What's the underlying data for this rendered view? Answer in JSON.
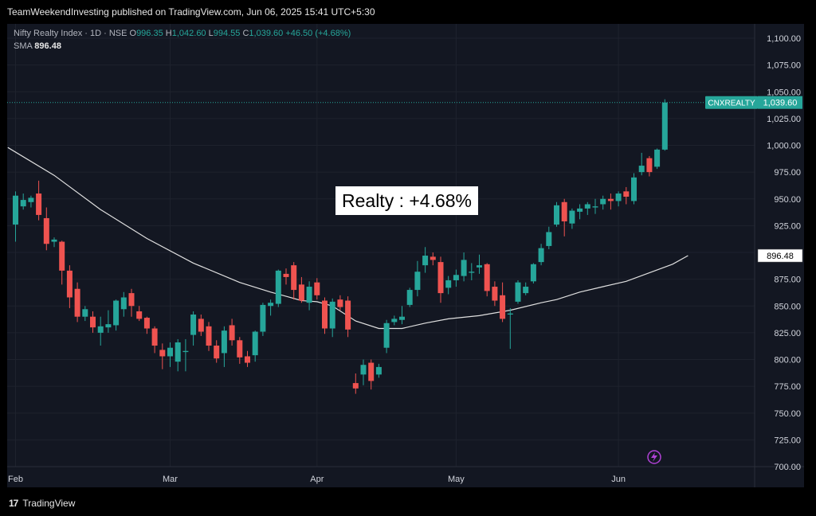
{
  "header": {
    "publish_line": "TeamWeekendInvesting published on TradingView.com, Jun 06, 2025 15:41 UTC+5:30"
  },
  "legend": {
    "symbol": "Nifty Realty Index · 1D · NSE",
    "o_label": "O",
    "o_value": "996.35",
    "h_label": "H",
    "h_value": "1,042.60",
    "l_label": "L",
    "l_value": "994.55",
    "c_label": "C",
    "c_value": "1,039.60",
    "change": "+46.50 (+4.68%)",
    "sma_label": "SMA",
    "sma_value": "896.48"
  },
  "annotation": {
    "text": "Realty : +4.68%"
  },
  "footer": {
    "brand": "TradingView",
    "brand_mark": "17"
  },
  "colors": {
    "up": "#26a69a",
    "down": "#ef5350",
    "background": "#131722",
    "grid": "#1e222d",
    "sma": "#e0e0e0"
  },
  "chart_data": {
    "type": "candlestick",
    "symbol": "CNXREALTY",
    "last_price_label": "1,039.60",
    "sma_label": "896.48",
    "ylim": [
      700,
      1100
    ],
    "y_ticks": [
      700,
      725,
      750,
      775,
      800,
      825,
      850,
      875,
      900,
      925,
      950,
      975,
      1000,
      1025,
      1050,
      1075,
      1100
    ],
    "y_tick_labels": [
      "700.00",
      "725.00",
      "750.00",
      "775.00",
      "800.00",
      "825.00",
      "850.00",
      "875.00",
      "900.00",
      "925.00",
      "950.00",
      "975.00",
      "1,000.00",
      "1,025.00",
      "1,050.00",
      "1,075.00",
      "1,100.00"
    ],
    "x_labels": [
      {
        "label": "Feb",
        "index": 0
      },
      {
        "label": "Mar",
        "index": 20
      },
      {
        "label": "Apr",
        "index": 39
      },
      {
        "label": "May",
        "index": 57
      },
      {
        "label": "Jun",
        "index": 78
      }
    ],
    "candles": [
      [
        926,
        957,
        910,
        953
      ],
      [
        943,
        955,
        940,
        949
      ],
      [
        947,
        953,
        942,
        951
      ],
      [
        955,
        967,
        930,
        935
      ],
      [
        932,
        942,
        902,
        908
      ],
      [
        910,
        914,
        905,
        912
      ],
      [
        910,
        911,
        870,
        883
      ],
      [
        883,
        888,
        848,
        858
      ],
      [
        866,
        872,
        835,
        840
      ],
      [
        840,
        850,
        836,
        847
      ],
      [
        840,
        845,
        825,
        830
      ],
      [
        825,
        840,
        813,
        831
      ],
      [
        830,
        846,
        825,
        833
      ],
      [
        832,
        856,
        827,
        855
      ],
      [
        847,
        863,
        840,
        858
      ],
      [
        862,
        866,
        840,
        850
      ],
      [
        845,
        850,
        836,
        838
      ],
      [
        839,
        840,
        824,
        829
      ],
      [
        829,
        831,
        806,
        813
      ],
      [
        809,
        815,
        791,
        803
      ],
      [
        803,
        816,
        793,
        811
      ],
      [
        798,
        819,
        789,
        816
      ],
      [
        807,
        819,
        789,
        808
      ],
      [
        823,
        845,
        813,
        842
      ],
      [
        838,
        842,
        822,
        826
      ],
      [
        831,
        835,
        808,
        813
      ],
      [
        813,
        818,
        797,
        801
      ],
      [
        806,
        831,
        793,
        827
      ],
      [
        832,
        838,
        813,
        818
      ],
      [
        818,
        821,
        796,
        802
      ],
      [
        803,
        808,
        793,
        797
      ],
      [
        804,
        827,
        798,
        826
      ],
      [
        826,
        853,
        822,
        851
      ],
      [
        850,
        856,
        841,
        853
      ],
      [
        852,
        884,
        849,
        883
      ],
      [
        880,
        885,
        870,
        877
      ],
      [
        888,
        891,
        856,
        865
      ],
      [
        870,
        877,
        853,
        855
      ],
      [
        853,
        873,
        846,
        868
      ],
      [
        872,
        876,
        856,
        860
      ],
      [
        855,
        858,
        824,
        829
      ],
      [
        829,
        857,
        821,
        854
      ],
      [
        856,
        860,
        846,
        849
      ],
      [
        855,
        859,
        821,
        828
      ],
      [
        778,
        787,
        768,
        773
      ],
      [
        786,
        800,
        776,
        795
      ],
      [
        797,
        800,
        772,
        780
      ],
      [
        786,
        796,
        783,
        793
      ],
      [
        811,
        837,
        806,
        834
      ],
      [
        835,
        841,
        832,
        838
      ],
      [
        837,
        850,
        833,
        840
      ],
      [
        851,
        867,
        849,
        865
      ],
      [
        865,
        892,
        859,
        882
      ],
      [
        888,
        905,
        881,
        897
      ],
      [
        896,
        900,
        888,
        893
      ],
      [
        891,
        896,
        853,
        862
      ],
      [
        867,
        878,
        861,
        874
      ],
      [
        874,
        884,
        868,
        879
      ],
      [
        878,
        900,
        873,
        893
      ],
      [
        881,
        890,
        874,
        882
      ],
      [
        886,
        898,
        880,
        888
      ],
      [
        889,
        890,
        859,
        864
      ],
      [
        868,
        873,
        850,
        855
      ],
      [
        860,
        872,
        835,
        838
      ],
      [
        842,
        848,
        810,
        843
      ],
      [
        854,
        874,
        852,
        872
      ],
      [
        862,
        872,
        860,
        868
      ],
      [
        873,
        890,
        871,
        889
      ],
      [
        891,
        908,
        888,
        904
      ],
      [
        906,
        924,
        903,
        919
      ],
      [
        926,
        947,
        924,
        944
      ],
      [
        947,
        950,
        915,
        929
      ],
      [
        927,
        941,
        922,
        939
      ],
      [
        938,
        945,
        931,
        941
      ],
      [
        941,
        947,
        935,
        945
      ],
      [
        942,
        950,
        936,
        943
      ],
      [
        945,
        953,
        940,
        950
      ],
      [
        950,
        955,
        940,
        948
      ],
      [
        948,
        957,
        943,
        955
      ],
      [
        957,
        961,
        945,
        952
      ],
      [
        948,
        974,
        945,
        970
      ],
      [
        975,
        993,
        972,
        981
      ],
      [
        988,
        990,
        971,
        975
      ],
      [
        980,
        997,
        978,
        996
      ],
      [
        996,
        1043,
        995,
        1040
      ]
    ],
    "sma": [
      [
        -1,
        998
      ],
      [
        5,
        972
      ],
      [
        11,
        940
      ],
      [
        17,
        913
      ],
      [
        23,
        890
      ],
      [
        29,
        872
      ],
      [
        33,
        863
      ],
      [
        35,
        859
      ],
      [
        37,
        855
      ],
      [
        39,
        854
      ],
      [
        41,
        850
      ],
      [
        44,
        836
      ],
      [
        47,
        829
      ],
      [
        50,
        829
      ],
      [
        53,
        834
      ],
      [
        56,
        838
      ],
      [
        60,
        841
      ],
      [
        64,
        846
      ],
      [
        68,
        853
      ],
      [
        70,
        856
      ],
      [
        73,
        863
      ],
      [
        76,
        868
      ],
      [
        79,
        873
      ],
      [
        82,
        881
      ],
      [
        85,
        889
      ],
      [
        87,
        897
      ]
    ]
  }
}
